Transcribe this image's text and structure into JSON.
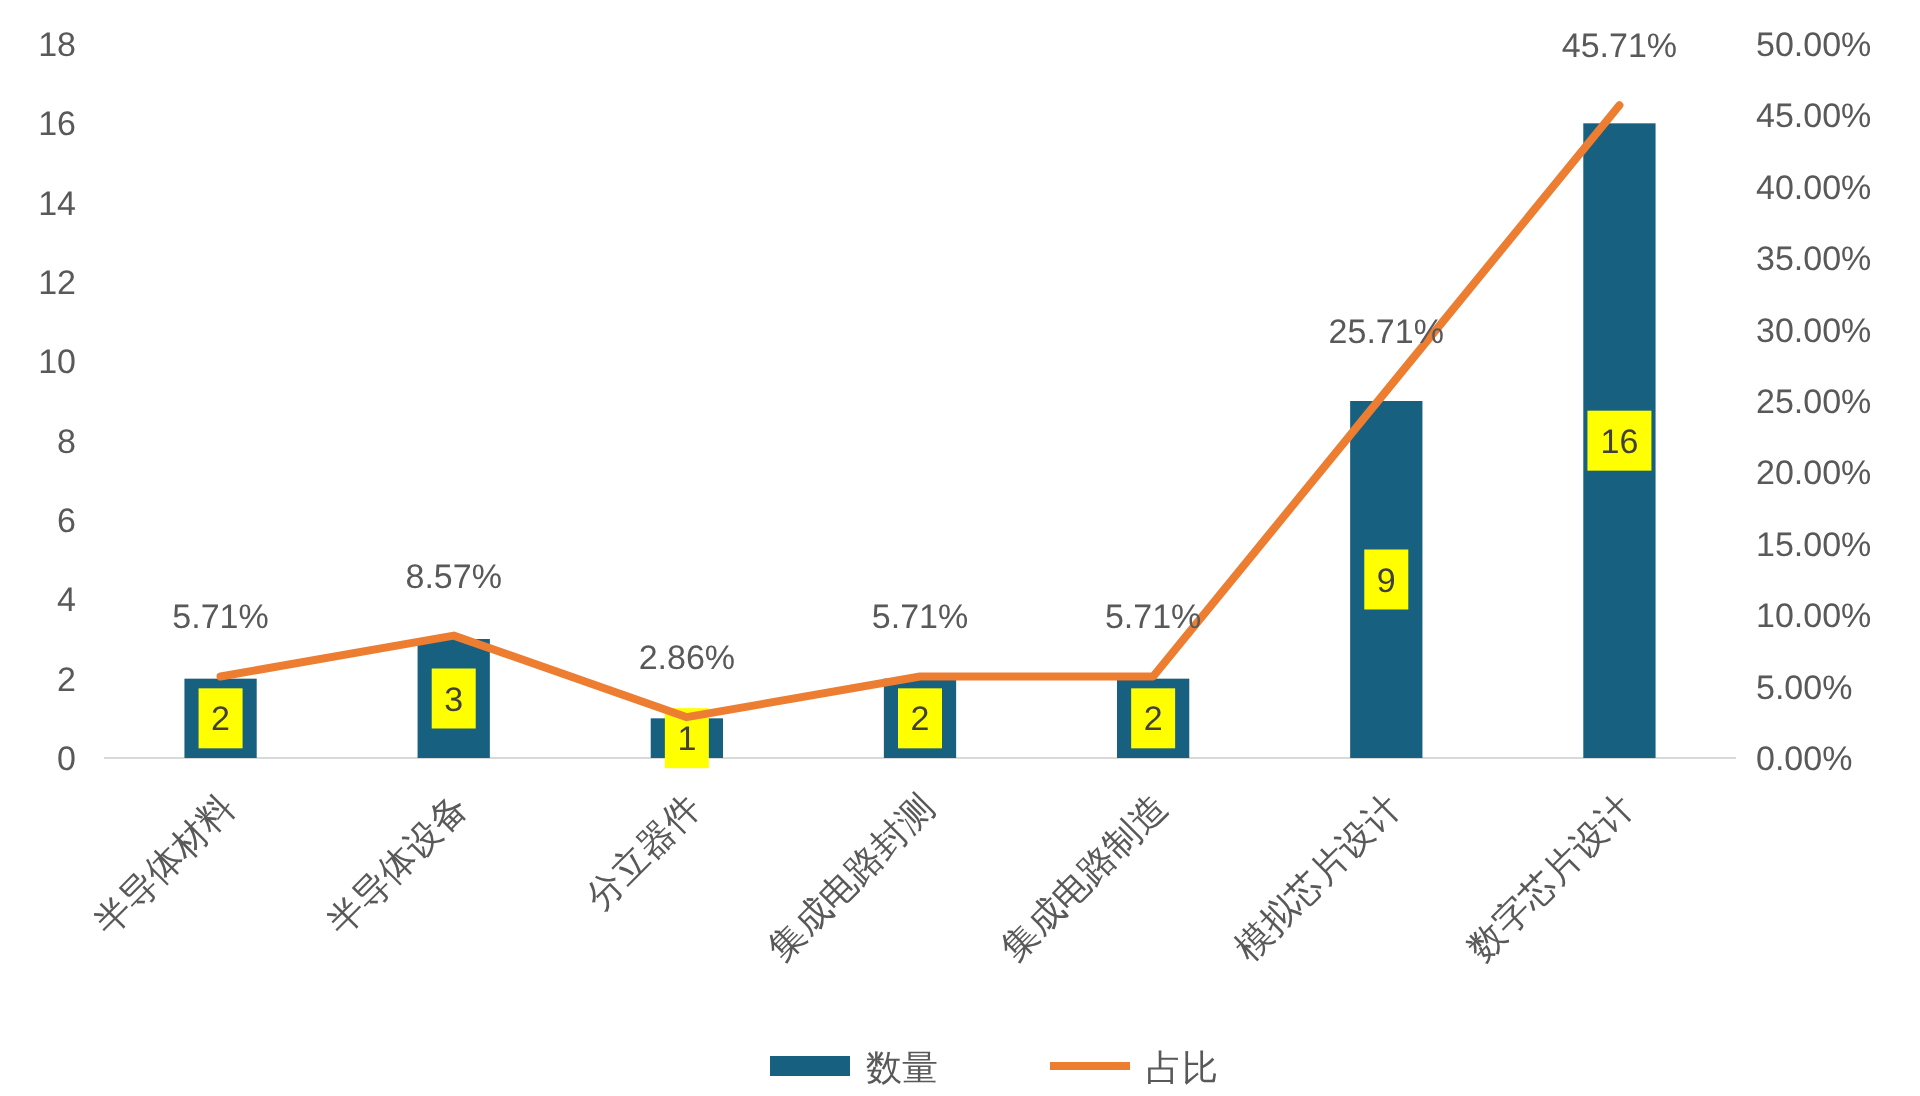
{
  "chart_data": {
    "type": "bar",
    "categories": [
      "半导体材料",
      "半导体设备",
      "分立器件",
      "集成电路封测",
      "集成电路制造",
      "模拟芯片设计",
      "数字芯片设计"
    ],
    "series": [
      {
        "name": "数量",
        "color": "#17607f",
        "values": [
          2,
          3,
          1,
          2,
          2,
          9,
          16
        ],
        "value_labels": [
          "2",
          "3",
          "1",
          "2",
          "2",
          "9",
          "16"
        ]
      },
      {
        "name": "占比",
        "type": "line",
        "axis": "y2",
        "color": "#ed7d31",
        "values": [
          5.71,
          8.57,
          2.86,
          5.71,
          5.71,
          25.71,
          45.71
        ],
        "value_labels": [
          "5.71%",
          "8.57%",
          "2.86%",
          "5.71%",
          "5.71%",
          "25.71%",
          "45.71%"
        ]
      }
    ],
    "ylim": [
      0,
      18
    ],
    "yticks": [
      0,
      2,
      4,
      6,
      8,
      10,
      12,
      14,
      16,
      18
    ],
    "y2lim": [
      0,
      50
    ],
    "y2ticks": [
      {
        "value": 0,
        "label": "0.00%"
      },
      {
        "value": 5,
        "label": "5.00%"
      },
      {
        "value": 10,
        "label": "10.00%"
      },
      {
        "value": 15,
        "label": "15.00%"
      },
      {
        "value": 20,
        "label": "20.00%"
      },
      {
        "value": 25,
        "label": "25.00%"
      },
      {
        "value": 30,
        "label": "30.00%"
      },
      {
        "value": 35,
        "label": "35.00%"
      },
      {
        "value": 40,
        "label": "40.00%"
      },
      {
        "value": 45,
        "label": "45.00%"
      },
      {
        "value": 50,
        "label": "50.00%"
      }
    ],
    "legend": "bottom"
  }
}
